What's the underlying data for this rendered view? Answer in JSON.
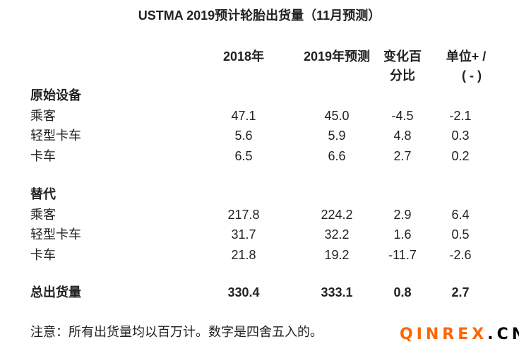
{
  "title": "USTMA 2019预计轮胎出货量（11月预测）",
  "headers": [
    "2018年",
    "2019年预测",
    "变化百",
    "分比",
    "单位+ /",
    "( - )"
  ],
  "sections": [
    {
      "name": "原始设备",
      "rows": [
        [
          "乘客",
          "47.1",
          "45.0",
          "-4.5",
          "-2.1"
        ],
        [
          "轻型卡车",
          "5.6",
          "5.9",
          "4.8",
          "0.3"
        ],
        [
          "卡车",
          "6.5",
          "6.6",
          "2.7",
          "0.2"
        ]
      ]
    },
    {
      "name": "替代",
      "rows": [
        [
          "乘客",
          "217.8",
          "224.2",
          "2.9",
          "6.4"
        ],
        [
          "轻型卡车",
          "31.7",
          "32.2",
          "1.6",
          "0.5"
        ],
        [
          "卡车",
          "21.8",
          "19.2",
          "-11.7",
          "-2.6"
        ]
      ]
    }
  ],
  "total": [
    "总出货量",
    "330.4",
    "333.1",
    "0.8",
    "2.7"
  ],
  "note": "注意：所有出货量均以百万计。数字是四舍五入的。",
  "watermark": {
    "a": "QINREX",
    "b": ".CN",
    "color_a": "#ff6600",
    "color_b": "#000000"
  }
}
